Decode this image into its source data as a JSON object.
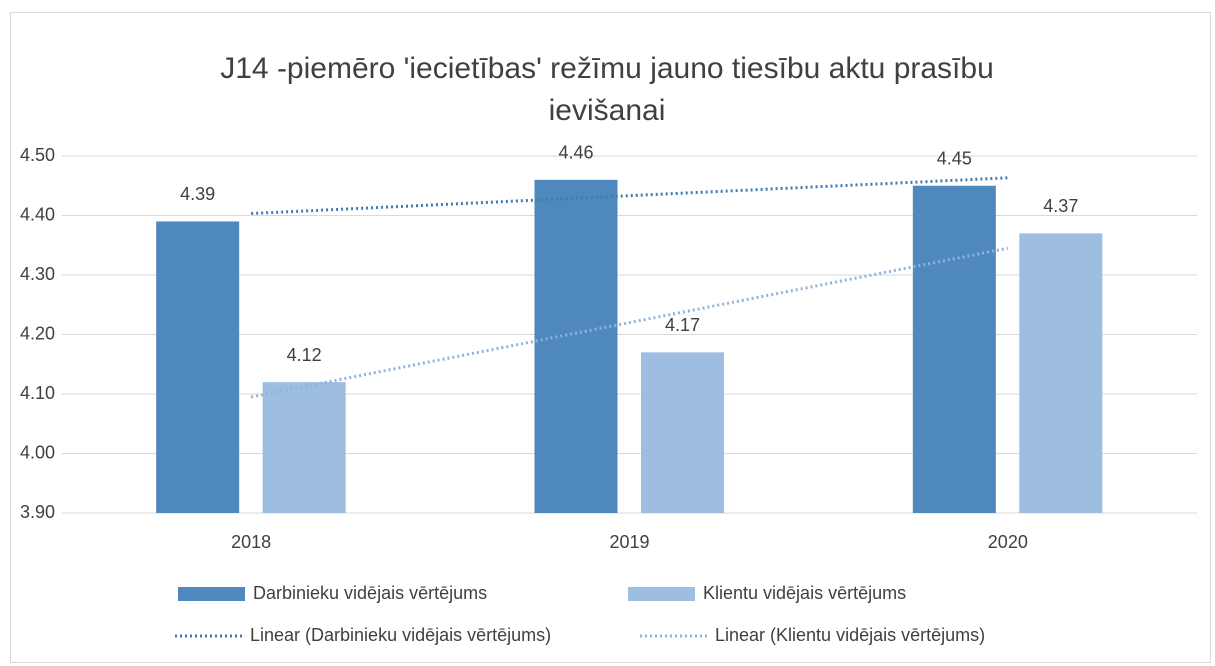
{
  "chart_data": {
    "type": "bar",
    "title": "J14 -piemēro 'iecietības' režīmu jauno tiesību aktu prasību ievišanai",
    "categories": [
      "2018",
      "2019",
      "2020"
    ],
    "series": [
      {
        "name": "Darbinieku vidējais vērtējums",
        "color": "#4e88bd",
        "values": [
          4.39,
          4.46,
          4.45
        ]
      },
      {
        "name": "Klientu vidējais vērtējums",
        "color": "#9dbde1",
        "values": [
          4.12,
          4.17,
          4.37
        ]
      }
    ],
    "trendlines": [
      {
        "name": "Linear (Darbinieku vidējais vērtējums)",
        "color": "#3f7bb5",
        "series": 0
      },
      {
        "name": "Linear (Klientu vidējais vērtējums)",
        "color": "#8fb3dc",
        "series": 1
      }
    ],
    "ylim": [
      3.9,
      4.5
    ],
    "yticks": [
      {
        "value": 3.9,
        "label": "3.90"
      },
      {
        "value": 4.0,
        "label": "4.00"
      },
      {
        "value": 4.1,
        "label": "4.10"
      },
      {
        "value": 4.2,
        "label": "4.20"
      },
      {
        "value": 4.3,
        "label": "4.30"
      },
      {
        "value": 4.4,
        "label": "4.40"
      },
      {
        "value": 4.5,
        "label": "4.50"
      }
    ],
    "grid": true,
    "legend": "bottom"
  }
}
